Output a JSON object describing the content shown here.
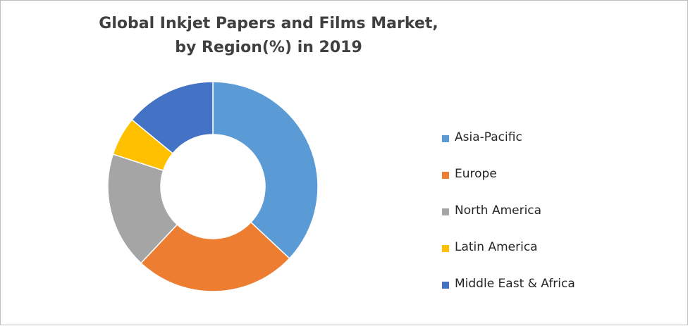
{
  "chart_data": {
    "type": "pie",
    "variant": "donut",
    "title": "Global Inkjet Papers and Films Market, by Region(%) in 2019",
    "title_lines": [
      "Global Inkjet Papers and Films Market,",
      "by Region(%) in 2019"
    ],
    "categories": [
      "Asia-Pacific",
      "Europe",
      "North America",
      "Latin America",
      "Middle East & Africa"
    ],
    "values": [
      37,
      25,
      18,
      6,
      14
    ],
    "colors": [
      "#5B9BD5",
      "#ED7D31",
      "#A5A5A5",
      "#FFC000",
      "#4472C4"
    ],
    "legend_position": "right"
  }
}
